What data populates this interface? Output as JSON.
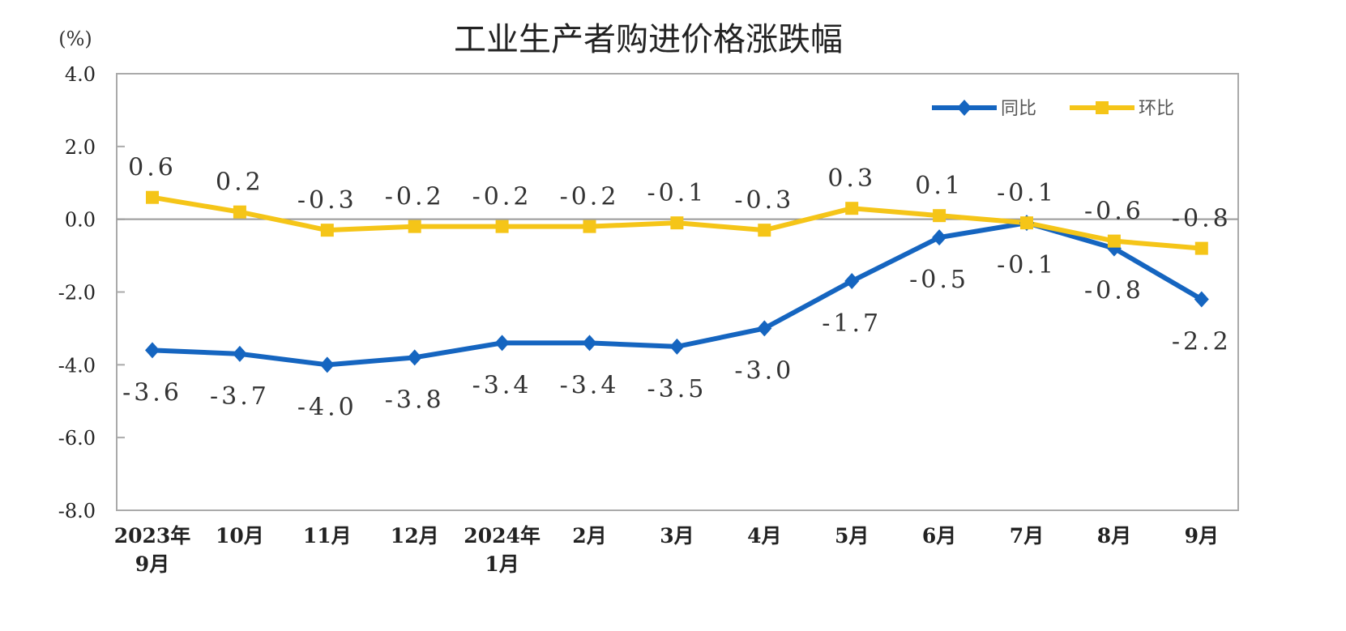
{
  "chart_data": {
    "type": "line",
    "title": "工业生产者购进价格涨跌幅",
    "ylabel": "(%)",
    "ylim": [
      -8.0,
      4.0
    ],
    "yticks": [
      "4.0",
      "2.0",
      "0.0",
      "-2.0",
      "-4.0",
      "-6.0",
      "-8.0"
    ],
    "grid": false,
    "legend_position": "top-right",
    "categories": [
      [
        "2023年",
        "9月"
      ],
      [
        "10月"
      ],
      [
        "11月"
      ],
      [
        "12月"
      ],
      [
        "2024年",
        "1月"
      ],
      [
        "2月"
      ],
      [
        "3月"
      ],
      [
        "4月"
      ],
      [
        "5月"
      ],
      [
        "6月"
      ],
      [
        "7月"
      ],
      [
        "8月"
      ],
      [
        "9月"
      ]
    ],
    "series": [
      {
        "name": "同比",
        "color": "#1565C0",
        "marker": "diamond",
        "values": [
          -3.6,
          -3.7,
          -4.0,
          -3.8,
          -3.4,
          -3.4,
          -3.5,
          -3.0,
          -1.7,
          -0.5,
          -0.1,
          -0.8,
          -2.2
        ],
        "labels": [
          "-3.6",
          "-3.7",
          "-4.0",
          "-3.8",
          "-3.4",
          "-3.4",
          "-3.5",
          "-3.0",
          "-1.7",
          "-0.5",
          "-0.1",
          "-0.8",
          "-2.2"
        ]
      },
      {
        "name": "环比",
        "color": "#F5C518",
        "marker": "square",
        "values": [
          0.6,
          0.2,
          -0.3,
          -0.2,
          -0.2,
          -0.2,
          -0.1,
          -0.3,
          0.3,
          0.1,
          -0.1,
          -0.6,
          -0.8
        ],
        "labels": [
          "0.6",
          "0.2",
          "-0.3",
          "-0.2",
          "-0.2",
          "-0.2",
          "-0.1",
          "-0.3",
          "0.3",
          "0.1",
          "-0.1",
          "-0.6",
          "-0.8"
        ]
      }
    ]
  }
}
